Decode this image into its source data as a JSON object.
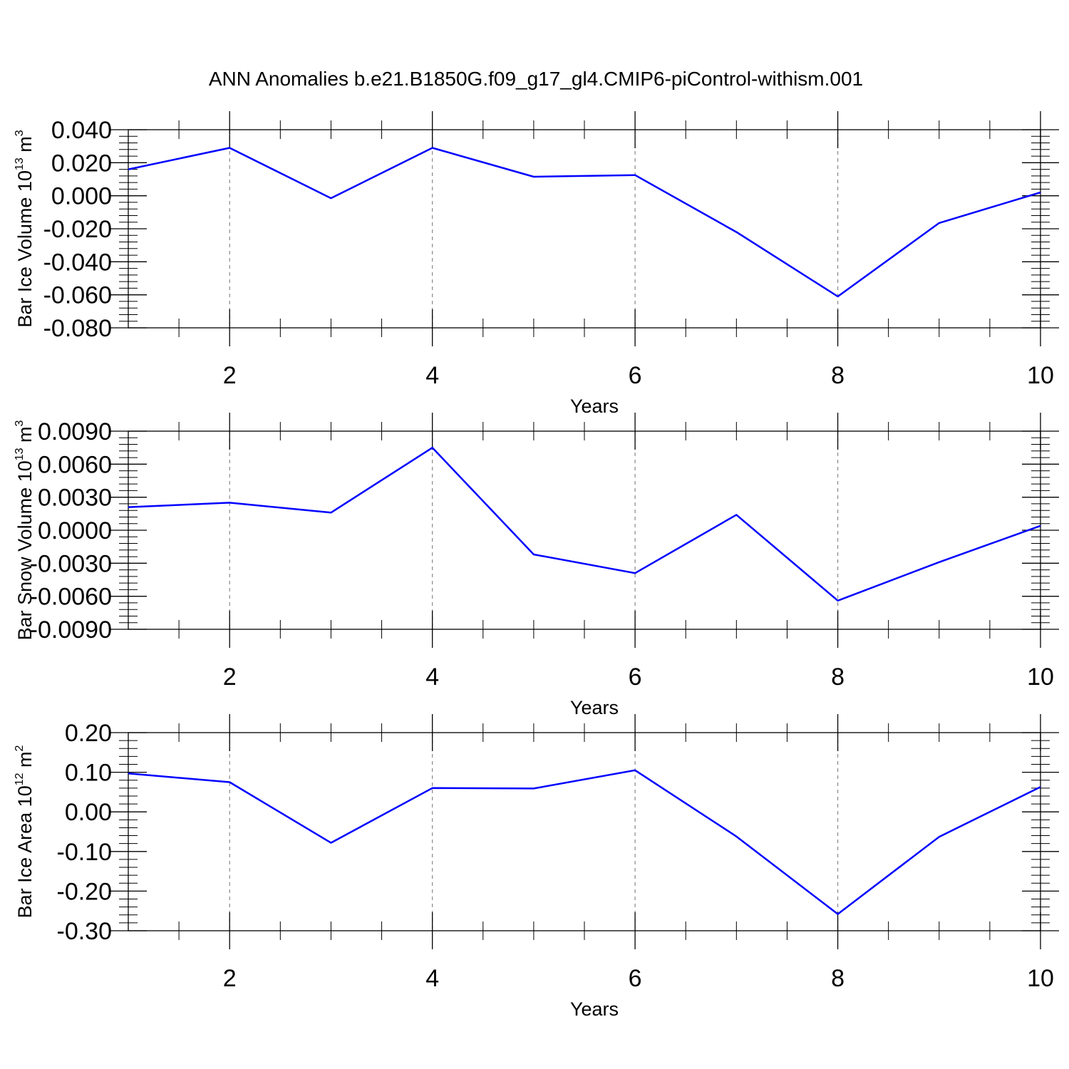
{
  "title": "ANN Anomalies b.e21.B1850G.f09_g17_gl4.CMIP6-piControl-withism.001",
  "colors": {
    "series": "#0000ff",
    "grid": "#888888"
  },
  "chart_data": [
    {
      "type": "line",
      "ylabel": {
        "text": "Bar Ice Volume 10",
        "sup": "13",
        "unit": " m",
        "unit_sup": "3"
      },
      "xlabel": "Years",
      "xlim": [
        1,
        10
      ],
      "xticks": [
        2,
        4,
        6,
        8,
        10
      ],
      "x_tick_labels": [
        "2",
        "4",
        "6",
        "8",
        "10"
      ],
      "ylim": [
        -0.08,
        0.04
      ],
      "yticks": [
        -0.08,
        -0.06,
        -0.04,
        -0.02,
        0.0,
        0.02,
        0.04
      ],
      "y_tick_labels": [
        "-0.080",
        "-0.060",
        "-0.040",
        "-0.020",
        "0.000",
        "0.020",
        "0.040"
      ],
      "x": [
        1,
        2,
        3,
        4,
        5,
        6,
        7,
        8,
        9,
        10
      ],
      "series": [
        {
          "values": [
            0.016,
            0.029,
            -0.0015,
            0.029,
            0.0115,
            0.0125,
            -0.022,
            -0.061,
            -0.0165,
            0.002
          ]
        }
      ],
      "grid": "x dashed at major ticks"
    },
    {
      "type": "line",
      "ylabel": {
        "text": "Bar Snow Volume 10",
        "sup": "13",
        "unit": " m",
        "unit_sup": "3"
      },
      "xlabel": "Years",
      "xlim": [
        1,
        10
      ],
      "xticks": [
        2,
        4,
        6,
        8,
        10
      ],
      "x_tick_labels": [
        "2",
        "4",
        "6",
        "8",
        "10"
      ],
      "ylim": [
        -0.009,
        0.009
      ],
      "yticks": [
        -0.009,
        -0.006,
        -0.003,
        0.0,
        0.003,
        0.006,
        0.009
      ],
      "y_tick_labels": [
        "-0.0090",
        "-0.0060",
        "-0.0030",
        "0.0000",
        "0.0030",
        "0.0060",
        "0.0090"
      ],
      "x": [
        1,
        2,
        3,
        4,
        5,
        6,
        7,
        8,
        9,
        10
      ],
      "series": [
        {
          "values": [
            0.0021,
            0.0025,
            0.0016,
            0.0075,
            -0.0022,
            -0.0039,
            0.0014,
            -0.0064,
            -0.0029,
            0.0004
          ]
        }
      ],
      "grid": "x dashed at major ticks"
    },
    {
      "type": "line",
      "ylabel": {
        "text": "Bar Ice Area 10",
        "sup": "12",
        "unit": " m",
        "unit_sup": "2"
      },
      "xlabel": "Years",
      "xlim": [
        1,
        10
      ],
      "xticks": [
        2,
        4,
        6,
        8,
        10
      ],
      "x_tick_labels": [
        "2",
        "4",
        "6",
        "8",
        "10"
      ],
      "ylim": [
        -0.3,
        0.2
      ],
      "yticks": [
        -0.3,
        -0.2,
        -0.1,
        0.0,
        0.1,
        0.2
      ],
      "y_tick_labels": [
        "-0.30",
        "-0.20",
        "-0.10",
        "0.00",
        "0.10",
        "0.20"
      ],
      "x": [
        1,
        2,
        3,
        4,
        5,
        6,
        7,
        8,
        9,
        10
      ],
      "series": [
        {
          "values": [
            0.097,
            0.075,
            -0.078,
            0.06,
            0.059,
            0.105,
            -0.062,
            -0.258,
            -0.063,
            0.063
          ]
        }
      ],
      "grid": "x dashed at major ticks"
    }
  ]
}
